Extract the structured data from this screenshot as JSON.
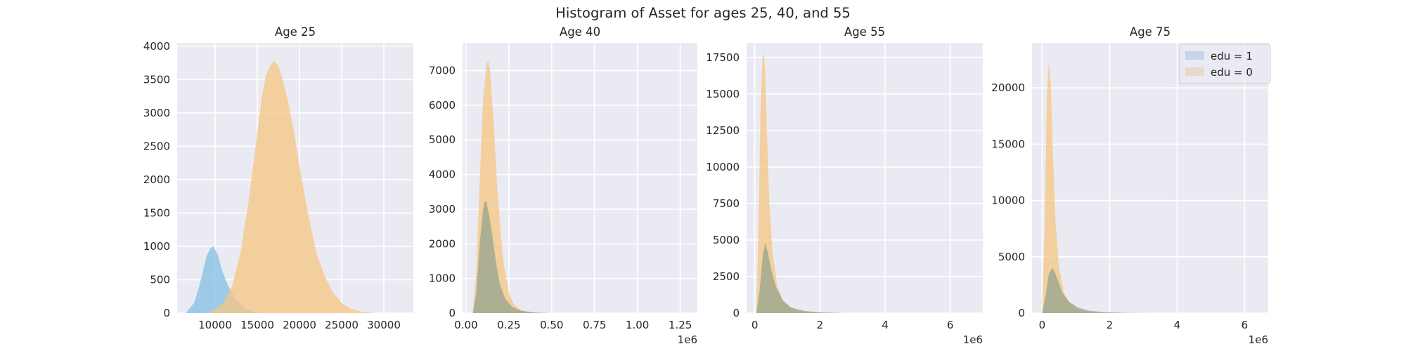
{
  "figure": {
    "title": "Histogram of Asset for ages 25, 40, and 55"
  },
  "legend": {
    "placement": "upper-right of last panel",
    "entries": [
      {
        "label": "edu = 1",
        "color": "#c8d3ec"
      },
      {
        "label": "edu = 0",
        "color": "#ead8cf"
      }
    ]
  },
  "chart_data": [
    {
      "type": "histogram",
      "title": "Age 25",
      "xlim": [
        5500,
        33500
      ],
      "ylim": [
        0,
        4050
      ],
      "xticks": [
        10000,
        15000,
        20000,
        25000,
        30000
      ],
      "xtick_labels": [
        "10000",
        "15000",
        "20000",
        "25000",
        "30000"
      ],
      "yticks": [
        0,
        500,
        1000,
        1500,
        2000,
        2500,
        3000,
        3500,
        4000
      ],
      "ytick_labels": [
        "0",
        "500",
        "1000",
        "1500",
        "2000",
        "2500",
        "3000",
        "3500",
        "4000"
      ],
      "x_offset_label": "",
      "series": [
        {
          "color": "#87c2e4",
          "x": [
            6500,
            7500,
            8000,
            8500,
            9000,
            9500,
            9800,
            10300,
            10800,
            11500,
            12500,
            13500,
            14500,
            15500
          ],
          "y": [
            0,
            150,
            350,
            600,
            860,
            980,
            1000,
            880,
            650,
            420,
            200,
            80,
            20,
            0
          ]
        },
        {
          "color": "#f5c686",
          "x": [
            9000,
            10000,
            11000,
            12000,
            13000,
            14000,
            15000,
            15500,
            16000,
            16500,
            17000,
            17500,
            18000,
            18500,
            19000,
            19500,
            20000,
            21000,
            22000,
            23000,
            24000,
            25000,
            26000,
            27000,
            28000,
            29000
          ],
          "y": [
            0,
            50,
            150,
            400,
            900,
            1700,
            2700,
            3200,
            3550,
            3700,
            3780,
            3700,
            3500,
            3250,
            2950,
            2600,
            2200,
            1500,
            900,
            550,
            300,
            150,
            70,
            30,
            10,
            0
          ]
        }
      ]
    },
    {
      "type": "histogram",
      "title": "Age 40",
      "xlim": [
        -0.02,
        1.35
      ],
      "ylim": [
        0,
        7800
      ],
      "xticks": [
        0.0,
        0.25,
        0.5,
        0.75,
        1.0,
        1.25
      ],
      "xtick_labels": [
        "0.00",
        "0.25",
        "0.50",
        "0.75",
        "1.00",
        "1.25"
      ],
      "yticks": [
        0,
        1000,
        2000,
        3000,
        4000,
        5000,
        6000,
        7000
      ],
      "ytick_labels": [
        "0",
        "1000",
        "2000",
        "3000",
        "4000",
        "5000",
        "6000",
        "7000"
      ],
      "x_offset_label": "1e6",
      "series": [
        {
          "color": "#f5c686",
          "x": [
            0.04,
            0.06,
            0.08,
            0.1,
            0.12,
            0.13,
            0.14,
            0.16,
            0.18,
            0.2,
            0.22,
            0.25,
            0.28,
            0.32,
            0.36,
            0.4
          ],
          "y": [
            0,
            1200,
            3800,
            6200,
            7200,
            7300,
            7000,
            5600,
            3800,
            2400,
            1400,
            600,
            250,
            90,
            30,
            0
          ]
        },
        {
          "color": "#99a58e",
          "x": [
            0.04,
            0.06,
            0.08,
            0.1,
            0.11,
            0.12,
            0.14,
            0.16,
            0.18,
            0.2,
            0.23,
            0.27,
            0.32,
            0.4,
            0.5
          ],
          "y": [
            0,
            600,
            2000,
            3000,
            3250,
            3200,
            2700,
            2000,
            1300,
            800,
            400,
            180,
            70,
            20,
            0
          ]
        }
      ]
    },
    {
      "type": "histogram",
      "title": "Age 55",
      "xlim": [
        -0.25,
        7.0
      ],
      "ylim": [
        0,
        18500
      ],
      "xticks": [
        0,
        2,
        4,
        6
      ],
      "xtick_labels": [
        "0",
        "2",
        "4",
        "6"
      ],
      "yticks": [
        0,
        2500,
        5000,
        7500,
        10000,
        12500,
        15000,
        17500
      ],
      "ytick_labels": [
        "0",
        "2500",
        "5000",
        "7500",
        "10000",
        "12500",
        "15000",
        "17500"
      ],
      "x_offset_label": "1e6",
      "series": [
        {
          "color": "#f5c686",
          "x": [
            0.05,
            0.12,
            0.18,
            0.24,
            0.28,
            0.32,
            0.38,
            0.45,
            0.55,
            0.7,
            0.9,
            1.2,
            1.6,
            2.2
          ],
          "y": [
            0,
            6000,
            14000,
            17500,
            17800,
            16500,
            12000,
            7500,
            4000,
            1800,
            700,
            250,
            80,
            0
          ]
        },
        {
          "color": "#99a58e",
          "x": [
            0.05,
            0.15,
            0.25,
            0.32,
            0.4,
            0.5,
            0.65,
            0.85,
            1.1,
            1.5,
            2.0,
            2.8
          ],
          "y": [
            0,
            1500,
            4000,
            4800,
            4200,
            3000,
            1800,
            900,
            400,
            150,
            50,
            0
          ]
        }
      ]
    },
    {
      "type": "histogram",
      "title": "Age 75",
      "xlim": [
        -0.3,
        6.7
      ],
      "ylim": [
        0,
        24000
      ],
      "xticks": [
        0,
        2,
        4,
        6
      ],
      "xtick_labels": [
        "0",
        "2",
        "4",
        "6"
      ],
      "yticks": [
        0,
        5000,
        10000,
        15000,
        20000
      ],
      "ytick_labels": [
        "0",
        "5000",
        "10000",
        "15000",
        "20000"
      ],
      "x_offset_label": "1e6",
      "series": [
        {
          "color": "#f5c686",
          "x": [
            0.0,
            0.08,
            0.14,
            0.2,
            0.26,
            0.32,
            0.4,
            0.5,
            0.65,
            0.85,
            1.1,
            1.5,
            2.0
          ],
          "y": [
            0,
            8000,
            19000,
            22500,
            20000,
            14000,
            8000,
            4000,
            1800,
            700,
            250,
            60,
            0
          ]
        },
        {
          "color": "#99a58e",
          "x": [
            0.0,
            0.1,
            0.2,
            0.3,
            0.38,
            0.48,
            0.6,
            0.8,
            1.05,
            1.4,
            1.9,
            2.6,
            3.4
          ],
          "y": [
            0,
            1500,
            3500,
            4000,
            3600,
            2800,
            1800,
            1000,
            500,
            200,
            70,
            20,
            0
          ]
        }
      ]
    }
  ]
}
